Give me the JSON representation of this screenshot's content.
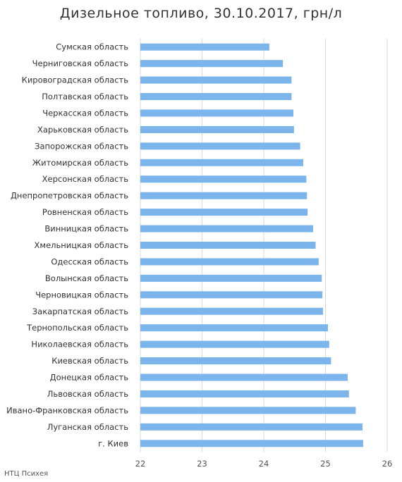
{
  "source": "НТЦ Психея",
  "colors": {
    "bar": "#7cb5ec",
    "grid": "#d9d9d9",
    "text": "#333333"
  },
  "chart_data": {
    "type": "bar",
    "orientation": "horizontal",
    "title": "Дизельное топливо, 30.10.2017, грн/л",
    "xlabel": "",
    "ylabel": "",
    "xlim": [
      22,
      26
    ],
    "ticks": [
      22,
      23,
      24,
      25,
      26
    ],
    "grid": true,
    "categories": [
      "Сумская область",
      "Черниговская область",
      "Кировоградская область",
      "Полтавская область",
      "Черкасская область",
      "Харьковская область",
      "Запорожская область",
      "Житомирская область",
      "Херсонская область",
      "Днепропетровская область",
      "Ровненская область",
      "Винницкая область",
      "Хмельницкая область",
      "Одесская область",
      "Волынская область",
      "Черновицкая область",
      "Закарпатская область",
      "Тернопольская область",
      "Николаевская область",
      "Киевская область",
      "Донецкая область",
      "Львовская область",
      "Ивано-Франковская область",
      "Луганская область",
      "г. Киев"
    ],
    "values": [
      24.09,
      24.31,
      24.45,
      24.45,
      24.48,
      24.49,
      24.59,
      24.64,
      24.69,
      24.7,
      24.71,
      24.8,
      24.84,
      24.89,
      24.94,
      24.95,
      24.96,
      25.04,
      25.06,
      25.09,
      25.36,
      25.38,
      25.49,
      25.6,
      25.61
    ]
  }
}
